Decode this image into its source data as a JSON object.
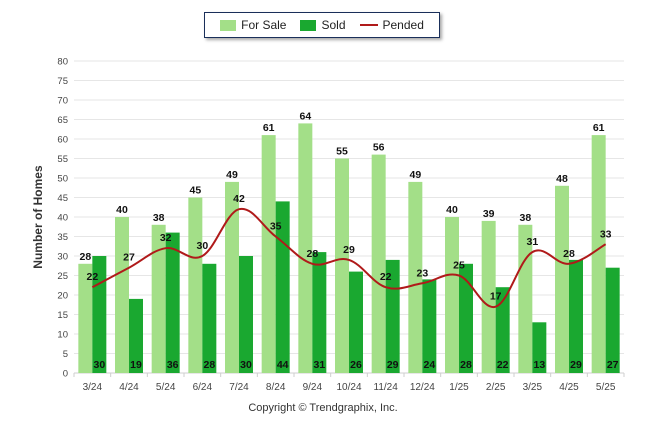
{
  "legend": {
    "for_sale": "For Sale",
    "sold": "Sold",
    "pended": "Pended"
  },
  "colors": {
    "for_sale": "#a3df88",
    "sold": "#1aa830",
    "pended": "#b01a1a",
    "grid": "#e6e6e6",
    "axis": "#cfcfcf"
  },
  "footer": {
    "copyright": "Copyright © Trendgraphix, Inc."
  },
  "chart_data": {
    "type": "bar",
    "title": "",
    "xlabel": "",
    "ylabel": "Number of Homes",
    "ylim": [
      0,
      80
    ],
    "yticks": [
      0,
      5,
      10,
      15,
      20,
      25,
      30,
      35,
      40,
      45,
      50,
      55,
      60,
      65,
      70,
      75,
      80
    ],
    "grid": true,
    "legend_position": "top",
    "categories": [
      "3/24",
      "4/24",
      "5/24",
      "6/24",
      "7/24",
      "8/24",
      "9/24",
      "10/24",
      "11/24",
      "12/24",
      "1/25",
      "2/25",
      "3/25",
      "4/25",
      "5/25"
    ],
    "series": [
      {
        "name": "For Sale",
        "type": "bar",
        "values": [
          28,
          40,
          38,
          45,
          49,
          61,
          64,
          55,
          56,
          49,
          40,
          39,
          38,
          48,
          61
        ]
      },
      {
        "name": "Sold",
        "type": "bar",
        "values": [
          30,
          19,
          36,
          28,
          30,
          44,
          31,
          26,
          29,
          24,
          28,
          22,
          13,
          29,
          27
        ]
      },
      {
        "name": "Pended",
        "type": "line",
        "values": [
          22,
          27,
          32,
          30,
          42,
          35,
          28,
          29,
          22,
          23,
          25,
          17,
          31,
          28,
          33
        ]
      }
    ]
  }
}
